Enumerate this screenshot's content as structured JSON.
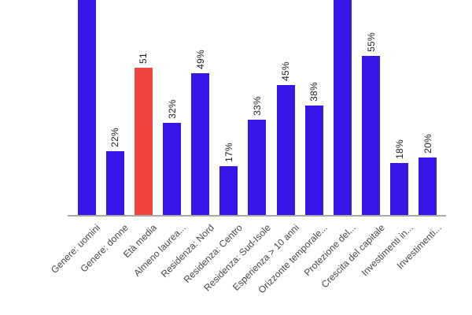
{
  "chart_data": {
    "type": "bar",
    "title": "",
    "xlabel": "",
    "ylabel": "",
    "gridlines": false,
    "y_axis_visible": false,
    "legend": null,
    "x_tick_rotation_deg": -45,
    "value_label_rotation_deg": -90,
    "categories": [
      "Genere: uomini",
      "Genere: donne",
      "Età media",
      "Almeno laurea...",
      "Residenza: Nord",
      "Residenza: Centro",
      "Residenza: Sud-Isole",
      "Esperienza > 10 anni",
      "Orizzonte temporale...",
      "Protezione del...",
      "Crescita del capitale",
      "Investimenti in...",
      "Investimenti..."
    ],
    "values": [
      null,
      22,
      51,
      32,
      49,
      17,
      33,
      45,
      38,
      null,
      55,
      18,
      20
    ],
    "bars": [
      {
        "label": "Genere: uomini",
        "value": null,
        "value_label": "",
        "clipped_top": true,
        "highlight": false
      },
      {
        "label": "Genere: donne",
        "value": 22,
        "value_label": "22%",
        "clipped_top": false,
        "highlight": false
      },
      {
        "label": "Età media",
        "value": 51,
        "value_label": "51",
        "clipped_top": false,
        "highlight": true
      },
      {
        "label": "Almeno laurea...",
        "value": 32,
        "value_label": "32%",
        "clipped_top": false,
        "highlight": false
      },
      {
        "label": "Residenza: Nord",
        "value": 49,
        "value_label": "49%",
        "clipped_top": false,
        "highlight": false
      },
      {
        "label": "Residenza: Centro",
        "value": 17,
        "value_label": "17%",
        "clipped_top": false,
        "highlight": false
      },
      {
        "label": "Residenza: Sud-Isole",
        "value": 33,
        "value_label": "33%",
        "clipped_top": false,
        "highlight": false
      },
      {
        "label": "Esperienza > 10 anni",
        "value": 45,
        "value_label": "45%",
        "clipped_top": false,
        "highlight": false
      },
      {
        "label": "Orizzonte temporale...",
        "value": 38,
        "value_label": "38%",
        "clipped_top": false,
        "highlight": false
      },
      {
        "label": "Protezione del...",
        "value": null,
        "value_label": "",
        "clipped_top": true,
        "highlight": false
      },
      {
        "label": "Crescita del capitale",
        "value": 55,
        "value_label": "55%",
        "clipped_top": false,
        "highlight": false
      },
      {
        "label": "Investimenti in...",
        "value": 18,
        "value_label": "18%",
        "clipped_top": false,
        "highlight": false
      },
      {
        "label": "Investimenti...",
        "value": 20,
        "value_label": "20%",
        "clipped_top": false,
        "highlight": false
      }
    ],
    "colors": {
      "bar": "#3617e8",
      "highlight_bar": "#f04641",
      "value_label_text": "#1c1c1c",
      "tick_label_text": "#464646",
      "axis_line": "#aaaaaa",
      "background": "#ffffff"
    }
  }
}
